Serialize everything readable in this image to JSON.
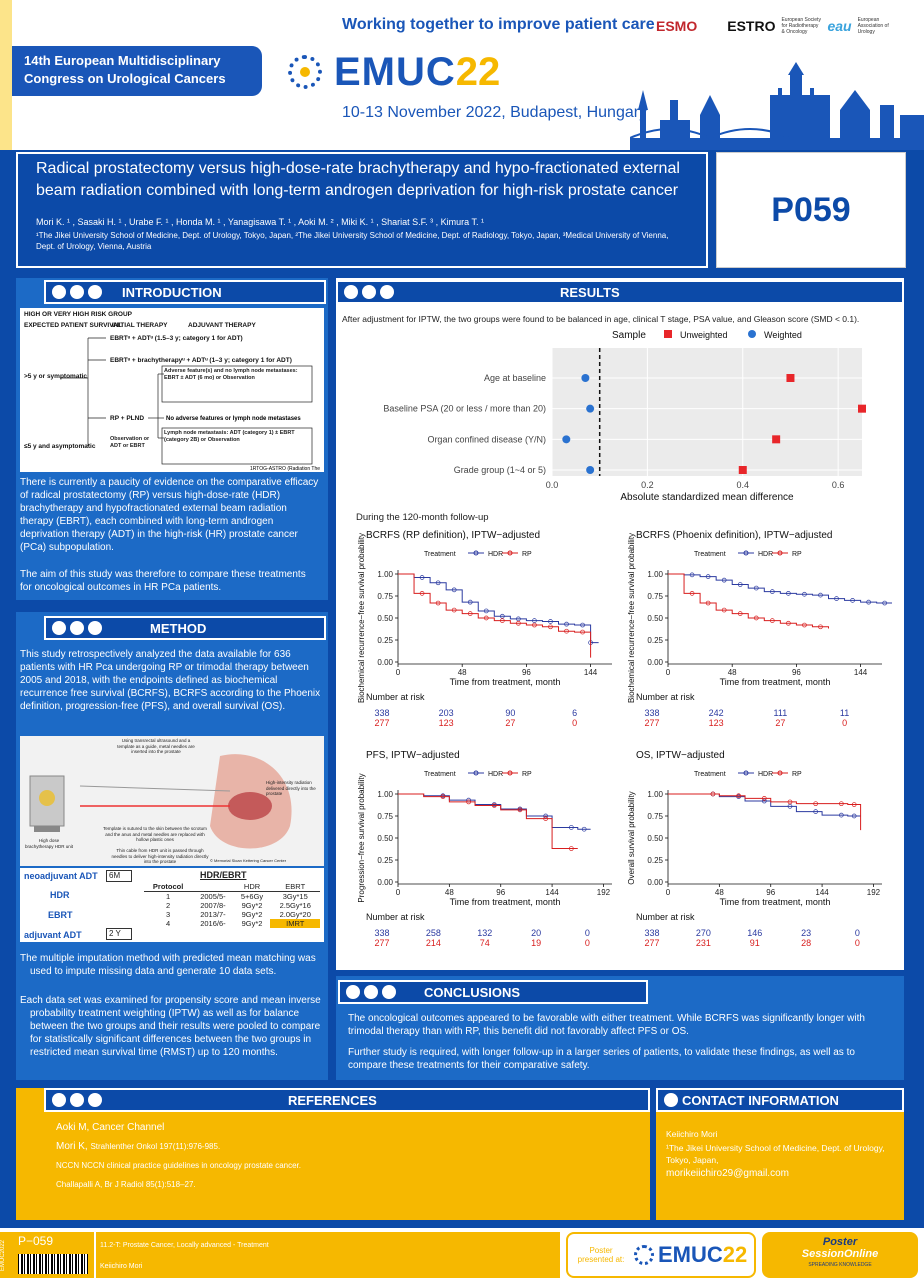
{
  "header": {
    "congress": "14th European Multidisciplinary Congress on Urological Cancers",
    "congress_line1": "14th European Multidisciplinary",
    "congress_line2": "Congress on Urological Cancers",
    "tagline": "Working together to improve patient care",
    "logo_part1": "EMUC",
    "logo_part2": "22",
    "dates": "10-13 November 2022, Budapest, Hungary",
    "partners": [
      "ESMO",
      "ESTRO",
      "eau"
    ],
    "estro_sub": "European Society for Radiotherapy & Oncology",
    "eau_sub": "European Association of Urology"
  },
  "title": "Radical prostatectomy versus high-dose-rate brachytherapy and hypo-fractionated external beam radiation combined with long-term androgen deprivation for high-risk prostate cancer",
  "authors": "Mori K. ¹ , Sasaki H. ¹ , Urabe F. ¹ , Honda M. ¹ , Yanagisawa T. ¹ , Aoki M. ² , Miki K. ¹ , Shariat S.F. ³ , Kimura T. ¹",
  "affiliations": "¹The Jikei University School of Medicine, Dept. of Urology, Tokyo, Japan, ²The Jikei University School of Medicine, Dept. of Radiology, Tokyo, Japan, ³Medical University of Vienna, Dept. of Urology, Vienna, Austria",
  "poster_id": "P059",
  "sections": {
    "introduction": "INTRODUCTION",
    "method": "METHOD",
    "results": "RESULTS",
    "conclusions": "CONCLUSIONS",
    "references": "REFERENCES",
    "contact": "CONTACT INFORMATION"
  },
  "intro": {
    "flow_header": "HIGH OR VERY HIGH RISK GROUP",
    "col1": "EXPECTED PATIENT SURVIVAL",
    "col2": "INITIAL THERAPY",
    "col3": "ADJUVANT THERAPY",
    "row1": "EBRTᵘ + ADTᵘ (1.5–3 y; category 1 for ADT)",
    "row2": "EBRTᵘ + brachytherapyᵘ + ADTᵘ (1–3 y; category 1 for ADT)",
    "left1": ">5 y or symptomatic",
    "adv1": "Adverse feature(s) and no lymph node metastases: EBRT ± ADT (6 mo) or Observation",
    "row3": "RP + PLND",
    "adv2": "No adverse features or lymph node metastases",
    "adv3": "Lymph node metastasis: ADT (category 1) ± EBRT (category 2B) or Observation",
    "left2": "≤5 y and asymptomatic",
    "left2_opts": "Observation or ADT or EBRT",
    "footnote": "1RTOG-ASTRO (Radiation The",
    "p1": "There is currently a paucity of evidence on the comparative efficacy of radical prostatectomy (RP) versus high-dose-rate (HDR) brachytherapy and hypofractionated external beam radiation therapy (EBRT), each combined with long-term androgen deprivation therapy (ADT) in the high-risk (HR) prostate cancer (PCa) subpopulation.",
    "p2": "The aim of this study was therefore to compare these treatments for oncological outcomes in HR PCa patients."
  },
  "method": {
    "p1": "This study retrospectively analyzed the data available for 636 patients with HR Pca undergoing RP or trimodal therapy between 2005 and 2018, with the endpoints defined as biochemical recurrence free survival (BCRFS), BCRFS according to the Phoenix definition, progression-free (PFS), and overall survival (OS).",
    "img_label1": "Using transrectal ultrasound and a template as a guide, metal needles are inserted into the prostate",
    "img_label2": "High-intensity radiation delivered directly into the prostate",
    "img_label3": "Template is sutured to the skin between the scrotum and the anus and metal needles are replaced with hollow plastic ones",
    "img_label4": "High dose brachytherapy HDR unit",
    "img_label5": "Thin cable from HDR unit is passed through needles to deliver high-intensity radiation directly into the prostate",
    "img_credit": "© Memorial Sloan Kettering Cancer Center",
    "neo_label": "neoadjuvant ADT",
    "neo_value": "6M",
    "hdr_label": "HDR",
    "ebrt_label": "EBRT",
    "adj_label": "adjuvant ADT",
    "adj_value": "2 Y",
    "table_title": "HDR/EBRT",
    "table_headers": [
      "Protocol",
      "",
      "HDR",
      "EBRT"
    ],
    "table_rows": [
      [
        "1",
        "2005/5-",
        "5+6Gy",
        "3Gy*15"
      ],
      [
        "2",
        "2007/8-",
        "9Gy*2",
        "2.5Gy*16"
      ],
      [
        "3",
        "2013/7-",
        "9Gy*2",
        "2.0Gy*20"
      ],
      [
        "4",
        "2016/6-",
        "9Gy*2",
        "IMRT"
      ]
    ],
    "p2": "The multiple imputation method with predicted mean matching was used to impute missing data and generate 10 data sets.",
    "p3": "Each data set was examined for propensity score and mean inverse probability treatment weighting (IPTW) as well as for balance between the two groups and their results were pooled to compare for statistically significant differences between the two groups in restricted mean survival time (RMST) up to 120 months."
  },
  "results": {
    "intro": "After adjustment for IPTW, the two groups were found to be balanced in age, clinical T stage, PSA value, and Gleason score (SMD < 0.1).",
    "followup": "During the 120-month follow-up"
  },
  "chart_data": [
    {
      "type": "scatter",
      "legend_title": "Sample",
      "series": [
        {
          "name": "Unweighted",
          "color": "#e8262a",
          "shape": "square",
          "values": [
            0.5,
            0.65,
            0.47,
            0.4
          ]
        },
        {
          "name": "Weighted",
          "color": "#2a72d0",
          "shape": "circle",
          "values": [
            0.07,
            0.08,
            0.03,
            0.08
          ]
        }
      ],
      "categories": [
        "Age at baseline",
        "Baseline PSA (20 or less / more than 20)",
        "Organ confined disease (Y/N)",
        "Grade group (1~4 or 5)"
      ],
      "xlabel": "Absolute standardized mean difference",
      "xticks": [
        "0.0",
        "0.2",
        "0.4",
        "0.6"
      ],
      "xlim": [
        0,
        0.65
      ],
      "reference_line": 0.1
    },
    {
      "type": "line",
      "title": "BCRFS (RP definition), IPTW−adjusted",
      "legend_title": "Treatment",
      "series": [
        {
          "name": "HDR",
          "color": "#2b3aa0",
          "x": [
            0,
            12,
            24,
            36,
            48,
            60,
            72,
            84,
            96,
            108,
            120,
            132,
            144,
            150
          ],
          "y": [
            1.0,
            0.96,
            0.9,
            0.82,
            0.68,
            0.58,
            0.52,
            0.49,
            0.47,
            0.46,
            0.43,
            0.42,
            0.22,
            0.22
          ]
        },
        {
          "name": "RP",
          "color": "#d81e1e",
          "x": [
            0,
            12,
            24,
            36,
            48,
            60,
            72,
            84,
            96,
            108,
            120,
            132,
            144
          ],
          "y": [
            1.0,
            0.78,
            0.67,
            0.59,
            0.55,
            0.5,
            0.47,
            0.44,
            0.42,
            0.4,
            0.35,
            0.34,
            0.05
          ]
        }
      ],
      "ylabel": "Biochemical recurrence−free survival probability",
      "xlabel": "Time from treatment, month",
      "xticks": [
        "0",
        "48",
        "96",
        "144"
      ],
      "yticks": [
        "0.00",
        "0.25",
        "0.50",
        "0.75",
        "1.00"
      ],
      "risk_title": "Number at risk",
      "risk_hdr": [
        "338",
        "203",
        "90",
        "6"
      ],
      "risk_rp": [
        "277",
        "123",
        "27",
        "0"
      ]
    },
    {
      "type": "line",
      "title": "BCRFS (Phoenix definition), IPTW−adjusted",
      "legend_title": "Treatment",
      "series": [
        {
          "name": "HDR",
          "color": "#2b3aa0",
          "x": [
            0,
            12,
            24,
            36,
            48,
            60,
            72,
            84,
            96,
            108,
            120,
            132,
            144,
            156,
            168
          ],
          "y": [
            1.0,
            0.99,
            0.97,
            0.93,
            0.88,
            0.84,
            0.8,
            0.78,
            0.77,
            0.76,
            0.72,
            0.7,
            0.68,
            0.67,
            0.67
          ]
        },
        {
          "name": "RP",
          "color": "#d81e1e",
          "x": [
            0,
            12,
            24,
            36,
            48,
            60,
            72,
            84,
            96,
            108,
            120
          ],
          "y": [
            1.0,
            0.78,
            0.67,
            0.59,
            0.55,
            0.5,
            0.47,
            0.44,
            0.42,
            0.4,
            0.38
          ]
        }
      ],
      "ylabel": "Biochemical recurrence−free survival probability",
      "xlabel": "Time from treatment, month",
      "xticks": [
        "0",
        "48",
        "96",
        "144"
      ],
      "yticks": [
        "0.00",
        "0.25",
        "0.50",
        "0.75",
        "1.00"
      ],
      "risk_title": "Number at risk",
      "risk_hdr": [
        "338",
        "242",
        "111",
        "11"
      ],
      "risk_rp": [
        "277",
        "123",
        "27",
        "0"
      ]
    },
    {
      "type": "line",
      "title": "PFS, IPTW−adjusted",
      "legend_title": "Treatment",
      "series": [
        {
          "name": "HDR",
          "color": "#2b3aa0",
          "x": [
            0,
            24,
            48,
            72,
            96,
            120,
            144,
            168,
            180
          ],
          "y": [
            1.0,
            0.98,
            0.93,
            0.88,
            0.83,
            0.75,
            0.62,
            0.6,
            0.6
          ]
        },
        {
          "name": "RP",
          "color": "#d81e1e",
          "x": [
            0,
            24,
            48,
            72,
            96,
            120,
            144,
            168
          ],
          "y": [
            1.0,
            0.97,
            0.91,
            0.87,
            0.82,
            0.72,
            0.38,
            0.38
          ]
        }
      ],
      "ylabel": "Progression−free survival probability",
      "xlabel": "Time from treatment, month",
      "xticks": [
        "0",
        "48",
        "96",
        "144",
        "192"
      ],
      "yticks": [
        "0.00",
        "0.25",
        "0.50",
        "0.75",
        "1.00"
      ],
      "risk_title": "Number at risk",
      "risk_hdr": [
        "338",
        "258",
        "132",
        "20",
        "0"
      ],
      "risk_rp": [
        "277",
        "214",
        "74",
        "19",
        "0"
      ]
    },
    {
      "type": "line",
      "title": "OS, IPTW−adjusted",
      "legend_title": "Treatment",
      "series": [
        {
          "name": "HDR",
          "color": "#2b3aa0",
          "x": [
            0,
            24,
            48,
            72,
            96,
            120,
            144,
            168,
            180
          ],
          "y": [
            1.0,
            1.0,
            0.97,
            0.92,
            0.86,
            0.8,
            0.76,
            0.75,
            0.75
          ]
        },
        {
          "name": "RP",
          "color": "#d81e1e",
          "x": [
            0,
            24,
            48,
            72,
            96,
            120,
            144,
            168,
            180
          ],
          "y": [
            1.0,
            1.0,
            0.98,
            0.95,
            0.91,
            0.89,
            0.89,
            0.88,
            0.59
          ]
        }
      ],
      "ylabel": "Overall survival probability",
      "xlabel": "Time from treatment, month",
      "xticks": [
        "0",
        "48",
        "96",
        "144",
        "192"
      ],
      "yticks": [
        "0.00",
        "0.25",
        "0.50",
        "0.75",
        "1.00"
      ],
      "risk_title": "Number at risk",
      "risk_hdr": [
        "338",
        "270",
        "146",
        "23",
        "0"
      ],
      "risk_rp": [
        "277",
        "231",
        "91",
        "28",
        "0"
      ]
    }
  ],
  "conclusions": {
    "p1": "The oncological outcomes appeared to be favorable with either treatment. While BCRFS was significantly longer with trimodal therapy than with RP, this benefit did not favorably affect PFS or OS.",
    "p2": "Further study is required, with longer follow-up in a larger series of patients, to validate these findings, as well as to compare these treatments for their comparative safety."
  },
  "references": [
    {
      "name": "Aoki M, Cancer Channel",
      "detail": ""
    },
    {
      "name": "Mori K,",
      "detail": "Strahlenther Onkol 197(11):976-985."
    },
    {
      "name": "",
      "detail": "NCCN NCCN clinical practice guidelines in oncology prostate cancer."
    },
    {
      "name": "",
      "detail": "Challapalli A, Br J Radiol 85(1):518–27."
    }
  ],
  "contact": {
    "name": "Keiichiro Mori",
    "affil": "¹The Jikei University School of Medicine, Dept. of Urology, Tokyo, Japan,",
    "email": "morikeiichiro29@gmail.com"
  },
  "footer": {
    "vertical": "EMUC2022",
    "code": "P−059",
    "topic": "11.2-T: Prostate Cancer, Locally advanced - Treatment",
    "author": "Keiichiro Mori",
    "presented_line1": "Poster",
    "presented_line2": "presented at:",
    "pso_line1": "Poster",
    "pso_line2": "SessionOnline",
    "pso_sub": "SPREADING KNOWLEDGE"
  }
}
